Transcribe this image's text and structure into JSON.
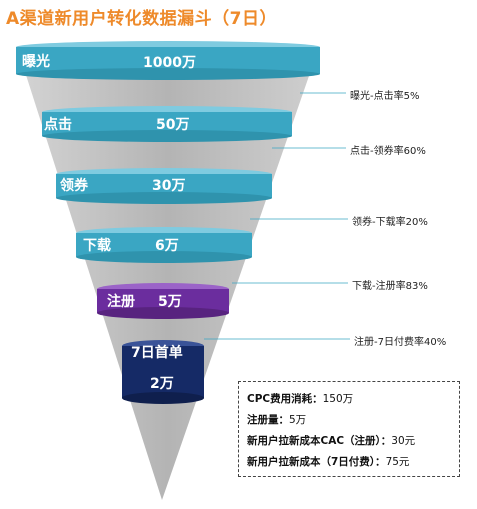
{
  "title": "A渠道新用户转化数据漏斗（7日）",
  "stages": [
    {
      "name": "曝光",
      "value": "1000万"
    },
    {
      "name": "点击",
      "value": "50万"
    },
    {
      "name": "领券",
      "value": "30万"
    },
    {
      "name": "下载",
      "value": "6万"
    },
    {
      "name": "注册",
      "value": "5万"
    },
    {
      "name": "7日首单",
      "value": "2万"
    }
  ],
  "rates": [
    "曝光-点击率5%",
    "点击-领券率60%",
    "领券-下载率20%",
    "下载-注册率83%",
    "注册-7日付费率40%"
  ],
  "info": {
    "cpc_label": "CPC费用消耗：",
    "cpc_value": "150万",
    "reg_label": "注册量：",
    "reg_value": "5万",
    "cac_label": "新用户拉新成本CAC（注册）：",
    "cac_value": "30元",
    "cost_label": "新用户拉新成本（7日付费）：",
    "cost_value": "75元"
  },
  "colors": {
    "title": "#ee8a2a",
    "band": "#3aa6c3",
    "band_top": "#7fcbe0",
    "band_purple": "#6b2d9e",
    "band_navy": "#152a66",
    "funnel_gray": "#bdbdbd"
  }
}
